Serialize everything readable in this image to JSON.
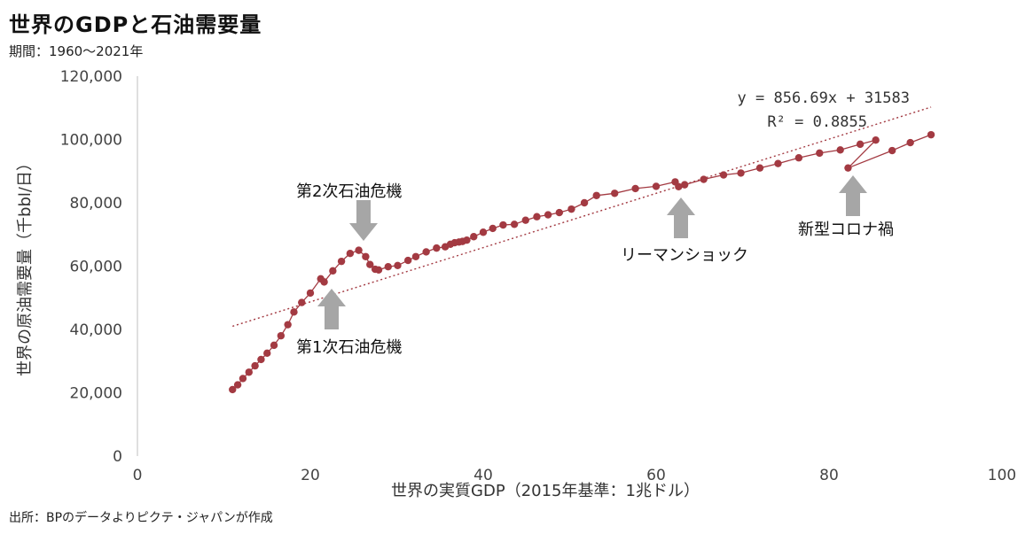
{
  "header": {
    "title": "世界のGDPと石油需要量",
    "subtitle": "期間：1960〜2021年"
  },
  "footer": {
    "source": "出所：BPのデータよりピクテ・ジャパンが作成"
  },
  "chart_data": {
    "type": "scatter",
    "xlabel": "世界の実質GDP（2015年基準：1兆ドル）",
    "ylabel": "世界の原油需要量（千bbl/日）",
    "xlim": [
      0,
      100
    ],
    "ylim": [
      0,
      120000
    ],
    "x_ticks": [
      0,
      20,
      40,
      60,
      80,
      100
    ],
    "y_ticks": [
      0,
      20000,
      40000,
      60000,
      80000,
      100000,
      120000
    ],
    "x_tick_labels": [
      "0",
      "20",
      "40",
      "60",
      "80",
      "100"
    ],
    "y_tick_labels": [
      "0",
      "20,000",
      "40,000",
      "60,000",
      "80,000",
      "100,000",
      "120,000"
    ],
    "grid": false,
    "legend": "none",
    "series_color": "#a33a42",
    "trendline_color": "#a33a42",
    "arrow_color": "#a6a6a6",
    "series": [
      {
        "x": [
          11.0,
          11.6,
          12.2,
          12.9,
          13.6,
          14.3,
          15.0,
          15.8,
          16.6,
          17.4,
          18.1,
          19.0,
          20.0,
          21.2,
          21.6,
          22.6,
          23.6,
          24.6,
          25.6,
          26.4,
          26.9,
          27.5,
          27.9,
          29.0,
          30.1,
          31.3,
          32.2,
          33.4,
          34.6,
          35.6,
          36.2,
          36.7,
          37.2,
          37.6,
          38.1,
          38.9,
          40.0,
          41.1,
          42.3,
          43.6,
          44.9,
          46.2,
          47.5,
          48.8,
          50.2,
          51.7,
          53.1,
          55.2,
          57.6,
          60.0,
          62.2,
          62.6,
          63.3,
          65.5,
          67.8,
          69.8,
          72.0,
          74.1,
          76.5,
          78.9,
          81.3,
          83.6,
          85.4,
          82.2,
          87.3,
          89.4,
          91.8
        ],
        "y": [
          21000,
          22500,
          24500,
          26500,
          28500,
          30500,
          32500,
          35000,
          38000,
          41500,
          45500,
          48500,
          51500,
          56000,
          55000,
          58500,
          61500,
          64000,
          65000,
          63000,
          60500,
          59000,
          58800,
          59800,
          60200,
          61800,
          63000,
          64500,
          65700,
          66100,
          66900,
          67400,
          67600,
          67800,
          68200,
          69300,
          70700,
          71900,
          73000,
          73200,
          74500,
          75600,
          76200,
          76900,
          78000,
          80000,
          82300,
          83000,
          84500,
          85200,
          86600,
          85100,
          85700,
          87400,
          88800,
          89400,
          91000,
          92400,
          94200,
          95700,
          96700,
          98500,
          99800,
          91000,
          96500,
          99000,
          101500
        ]
      }
    ],
    "trendline": {
      "slope": 856.69,
      "intercept": 31583,
      "x_range": [
        11.0,
        91.8
      ],
      "equation_label": "y = 856.69x + 31583",
      "r2_label": "R² = 0.8855"
    },
    "annotations": [
      {
        "name": "oil-crisis-1",
        "text": "第1次石油危機",
        "target_x": 22.5,
        "target_y": 55000,
        "direction": "up"
      },
      {
        "name": "oil-crisis-2",
        "text": "第2次石油危機",
        "target_x": 26.4,
        "target_y": 66000,
        "direction": "down"
      },
      {
        "name": "lehman-shock",
        "text": "リーマンショック",
        "target_x": 62.6,
        "target_y": 84500,
        "direction": "up"
      },
      {
        "name": "covid",
        "text": "新型コロナ禍",
        "target_x": 82.2,
        "target_y": 89500,
        "direction": "up"
      }
    ]
  }
}
